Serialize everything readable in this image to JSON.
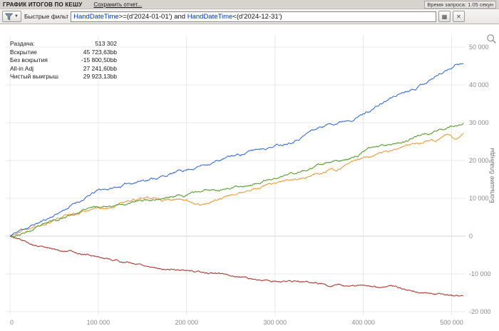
{
  "title_bar": {
    "title": "ГРАФИК ИТОГОВ ПО КЕШУ",
    "save_report": "Сохранить отчет...",
    "query_time": "Время запроса: 1.05 секун"
  },
  "filter_bar": {
    "label": "Быстрые фильт",
    "query": [
      {
        "text": "HandDateTime",
        "color": "#0033cc"
      },
      {
        "text": ">=(d'2024-01-01') and ",
        "color": "#111111"
      },
      {
        "text": "HandDateTime",
        "color": "#0033cc"
      },
      {
        "text": "<(d'2024-12-31')",
        "color": "#111111"
      }
    ],
    "apply_glyph": "▦",
    "clear_glyph": "✕"
  },
  "stats": {
    "rows": [
      {
        "label": "Раздача:",
        "value": "513 302"
      },
      {
        "label": "Вскрытие",
        "value": "45 723,63bb"
      },
      {
        "label": "Без вскрытия",
        "value": "-15 800,50bb"
      },
      {
        "label": "All-in Adj",
        "value": "27 241,60bb"
      },
      {
        "label": "Чистый выигрыш",
        "value": "29 923,13bb"
      }
    ]
  },
  "chart_data": {
    "type": "line",
    "title": "",
    "xlabel": "",
    "ylabel": "Большие блайнды",
    "x_max": 513302,
    "ylim": [
      -20000,
      50000
    ],
    "grid": true,
    "x_ticks": [
      {
        "value": 0,
        "label": "0"
      },
      {
        "value": 100000,
        "label": "100 000"
      },
      {
        "value": 200000,
        "label": "200 000"
      },
      {
        "value": 300000,
        "label": "300 000"
      },
      {
        "value": 400000,
        "label": "400 000"
      },
      {
        "value": 500000,
        "label": "500 000"
      }
    ],
    "y_ticks": [
      {
        "value": 50000,
        "label": "50 000"
      },
      {
        "value": 40000,
        "label": "40 000"
      },
      {
        "value": 30000,
        "label": "30 000"
      },
      {
        "value": 20000,
        "label": "20 000"
      },
      {
        "value": 10000,
        "label": "10 000"
      },
      {
        "value": 0,
        "label": "0"
      },
      {
        "value": -10000,
        "label": "-10 000"
      },
      {
        "value": -20000,
        "label": "-20 000"
      }
    ],
    "series": [
      {
        "name": "Без вскрытия",
        "color": "#a93a2e",
        "final": -15800.5,
        "seed": 5,
        "noise": 330,
        "keypoints": [
          [
            0,
            0
          ],
          [
            10000,
            -900
          ],
          [
            25000,
            -2100
          ],
          [
            40000,
            -3100
          ],
          [
            60000,
            -3900
          ],
          [
            80000,
            -4600
          ],
          [
            100000,
            -5300
          ],
          [
            120000,
            -6200
          ],
          [
            140000,
            -7100
          ],
          [
            160000,
            -7800
          ],
          [
            180000,
            -8400
          ],
          [
            200000,
            -8900
          ],
          [
            220000,
            -9500
          ],
          [
            240000,
            -10100
          ],
          [
            260000,
            -10600
          ],
          [
            280000,
            -11200
          ],
          [
            300000,
            -11700
          ],
          [
            320000,
            -12100
          ],
          [
            340000,
            -12400
          ],
          [
            360000,
            -12700
          ],
          [
            380000,
            -13000
          ],
          [
            400000,
            -13200
          ],
          [
            420000,
            -13700
          ],
          [
            440000,
            -14100
          ],
          [
            460000,
            -14500
          ],
          [
            480000,
            -14900
          ],
          [
            500000,
            -15300
          ],
          [
            513302,
            -15800
          ]
        ]
      },
      {
        "name": "All-in Adj",
        "color": "#f09c3a",
        "final": 27241.6,
        "seed": 37,
        "noise": 430,
        "keypoints": [
          [
            0,
            0
          ],
          [
            20000,
            1500
          ],
          [
            40000,
            3000
          ],
          [
            60000,
            5200
          ],
          [
            80000,
            6900
          ],
          [
            100000,
            8100
          ],
          [
            120000,
            9200
          ],
          [
            140000,
            9800
          ],
          [
            155000,
            10100
          ],
          [
            170000,
            9600
          ],
          [
            185000,
            9300
          ],
          [
            200000,
            9900
          ],
          [
            215000,
            8900
          ],
          [
            230000,
            10300
          ],
          [
            250000,
            11800
          ],
          [
            270000,
            12600
          ],
          [
            290000,
            13300
          ],
          [
            310000,
            14100
          ],
          [
            330000,
            15400
          ],
          [
            350000,
            16800
          ],
          [
            370000,
            18200
          ],
          [
            390000,
            20200
          ],
          [
            410000,
            21400
          ],
          [
            430000,
            22700
          ],
          [
            450000,
            24100
          ],
          [
            470000,
            25600
          ],
          [
            485000,
            26500
          ],
          [
            495000,
            27400
          ],
          [
            505000,
            26500
          ],
          [
            513302,
            27241
          ]
        ]
      },
      {
        "name": "Чистый выигрыш",
        "color": "#5a9e32",
        "final": 29923.13,
        "seed": 23,
        "noise": 420,
        "keypoints": [
          [
            0,
            0
          ],
          [
            20000,
            1200
          ],
          [
            40000,
            2600
          ],
          [
            60000,
            4800
          ],
          [
            80000,
            6500
          ],
          [
            100000,
            7600
          ],
          [
            120000,
            8600
          ],
          [
            140000,
            9000
          ],
          [
            160000,
            9600
          ],
          [
            180000,
            10400
          ],
          [
            200000,
            11100
          ],
          [
            220000,
            11900
          ],
          [
            240000,
            12600
          ],
          [
            260000,
            13400
          ],
          [
            280000,
            14200
          ],
          [
            300000,
            15000
          ],
          [
            320000,
            16300
          ],
          [
            340000,
            17600
          ],
          [
            355000,
            18400
          ],
          [
            370000,
            19000
          ],
          [
            385000,
            20200
          ],
          [
            400000,
            22300
          ],
          [
            420000,
            23600
          ],
          [
            440000,
            24900
          ],
          [
            460000,
            26100
          ],
          [
            480000,
            27600
          ],
          [
            500000,
            28900
          ],
          [
            513302,
            29923
          ]
        ]
      },
      {
        "name": "Вскрытие",
        "color": "#3a6fd8",
        "final": 45723.63,
        "seed": 11,
        "noise": 430,
        "keypoints": [
          [
            0,
            0
          ],
          [
            15000,
            1800
          ],
          [
            40000,
            4200
          ],
          [
            70000,
            8200
          ],
          [
            100000,
            11800
          ],
          [
            120000,
            12600
          ],
          [
            150000,
            14800
          ],
          [
            175000,
            15900
          ],
          [
            200000,
            17300
          ],
          [
            230000,
            19600
          ],
          [
            260000,
            21200
          ],
          [
            290000,
            23200
          ],
          [
            310000,
            24300
          ],
          [
            340000,
            27800
          ],
          [
            360000,
            29300
          ],
          [
            380000,
            30600
          ],
          [
            400000,
            32300
          ],
          [
            420000,
            34600
          ],
          [
            440000,
            37000
          ],
          [
            460000,
            39300
          ],
          [
            480000,
            41800
          ],
          [
            495000,
            43600
          ],
          [
            505000,
            45300
          ],
          [
            513302,
            45723
          ]
        ]
      }
    ]
  }
}
